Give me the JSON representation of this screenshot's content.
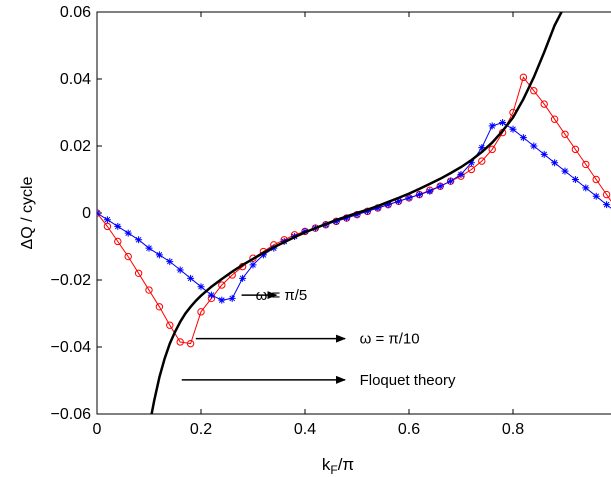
{
  "chart_data": {
    "type": "line",
    "xlabel": "k",
    "xlabel_sub": "F",
    "xlabel_tail": "/π",
    "ylabel": "ΔQ / cycle",
    "xlim": [
      0,
      1
    ],
    "ylim": [
      -0.06,
      0.06
    ],
    "x_ticks": [
      0,
      0.2,
      0.4,
      0.6,
      0.8,
      1
    ],
    "x_tick_labels": [
      "0",
      "0.2",
      "0.4",
      "0.6",
      "0.8",
      "1"
    ],
    "y_ticks": [
      -0.06,
      -0.04,
      -0.02,
      0,
      0.02,
      0.04,
      0.06
    ],
    "y_tick_labels": [
      "−0.06",
      "−0.04",
      "−0.02",
      "0",
      "0.02",
      "0.04",
      "0.06"
    ],
    "grid": false,
    "series": [
      {
        "name": "ω = π/10",
        "color": "#ff0000",
        "marker": "circle",
        "x": [
          0,
          0.02,
          0.04,
          0.06,
          0.08,
          0.1,
          0.12,
          0.14,
          0.16,
          0.18,
          0.2,
          0.22,
          0.24,
          0.26,
          0.28,
          0.3,
          0.32,
          0.34,
          0.36,
          0.38,
          0.4,
          0.42,
          0.44,
          0.46,
          0.48,
          0.5,
          0.52,
          0.54,
          0.56,
          0.58,
          0.6,
          0.62,
          0.64,
          0.66,
          0.68,
          0.7,
          0.72,
          0.74,
          0.76,
          0.78,
          0.8,
          0.82,
          0.84,
          0.86,
          0.88,
          0.9,
          0.92,
          0.94,
          0.96,
          0.98,
          1
        ],
        "y": [
          0,
          -0.004,
          -0.0085,
          -0.013,
          -0.018,
          -0.023,
          -0.028,
          -0.0335,
          -0.0385,
          -0.039,
          -0.0295,
          -0.0255,
          -0.0215,
          -0.0185,
          -0.016,
          -0.0135,
          -0.0115,
          -0.0095,
          -0.008,
          -0.0065,
          -0.0055,
          -0.0045,
          -0.0035,
          -0.0025,
          -0.0015,
          -0.0005,
          0.0005,
          0.0015,
          0.0025,
          0.0035,
          0.0045,
          0.0055,
          0.0068,
          0.008,
          0.0095,
          0.011,
          0.013,
          0.0155,
          0.019,
          0.024,
          0.03,
          0.0405,
          0.0365,
          0.0325,
          0.028,
          0.0235,
          0.019,
          0.0145,
          0.01,
          0.0055,
          0.001
        ]
      },
      {
        "name": "ω = π/5",
        "color": "#0000ff",
        "marker": "star",
        "x": [
          0,
          0.02,
          0.04,
          0.06,
          0.08,
          0.1,
          0.12,
          0.14,
          0.16,
          0.18,
          0.2,
          0.22,
          0.24,
          0.26,
          0.28,
          0.3,
          0.32,
          0.34,
          0.36,
          0.38,
          0.4,
          0.42,
          0.44,
          0.46,
          0.48,
          0.5,
          0.52,
          0.54,
          0.56,
          0.58,
          0.6,
          0.62,
          0.64,
          0.66,
          0.68,
          0.7,
          0.72,
          0.74,
          0.76,
          0.78,
          0.8,
          0.82,
          0.84,
          0.86,
          0.88,
          0.9,
          0.92,
          0.94,
          0.96,
          0.98,
          1
        ],
        "y": [
          0,
          -0.002,
          -0.004,
          -0.006,
          -0.008,
          -0.0105,
          -0.0125,
          -0.0145,
          -0.017,
          -0.0195,
          -0.022,
          -0.0245,
          -0.026,
          -0.0255,
          -0.0195,
          -0.0155,
          -0.0125,
          -0.0105,
          -0.0085,
          -0.007,
          -0.0055,
          -0.0045,
          -0.0035,
          -0.0025,
          -0.0015,
          -0.0005,
          0.0005,
          0.0015,
          0.0025,
          0.0035,
          0.0045,
          0.0055,
          0.0065,
          0.008,
          0.0095,
          0.0115,
          0.015,
          0.0195,
          0.026,
          0.027,
          0.025,
          0.0225,
          0.02,
          0.0175,
          0.015,
          0.0125,
          0.01,
          0.0075,
          0.005,
          0.0025,
          0
        ]
      },
      {
        "name": "Floquet theory",
        "color": "#000000",
        "marker": "none",
        "x": [
          0.105,
          0.11,
          0.12,
          0.13,
          0.14,
          0.15,
          0.16,
          0.17,
          0.18,
          0.19,
          0.2,
          0.22,
          0.24,
          0.26,
          0.28,
          0.3,
          0.32,
          0.34,
          0.36,
          0.38,
          0.4,
          0.42,
          0.44,
          0.46,
          0.48,
          0.5,
          0.52,
          0.54,
          0.56,
          0.58,
          0.6,
          0.62,
          0.64,
          0.66,
          0.68,
          0.7,
          0.72,
          0.74,
          0.76,
          0.78,
          0.8,
          0.82,
          0.84,
          0.86,
          0.88,
          0.9
        ],
        "y": [
          -0.06,
          -0.056,
          -0.049,
          -0.0435,
          -0.039,
          -0.0355,
          -0.0325,
          -0.03,
          -0.028,
          -0.0262,
          -0.0247,
          -0.022,
          -0.0197,
          -0.0175,
          -0.0155,
          -0.0137,
          -0.0119,
          -0.0102,
          -0.0087,
          -0.0072,
          -0.0058,
          -0.0045,
          -0.0033,
          -0.0021,
          -0.001,
          0,
          0.001,
          0.0021,
          0.0033,
          0.0045,
          0.0058,
          0.0072,
          0.0087,
          0.0102,
          0.0119,
          0.0137,
          0.0158,
          0.0182,
          0.021,
          0.0245,
          0.0285,
          0.034,
          0.0405,
          0.048,
          0.056,
          0.062
        ]
      }
    ],
    "annotations": [
      {
        "text": "ω = π/5",
        "x": 0.305,
        "y": -0.0245,
        "arrow_from": 0.278,
        "arrow_to": 0.345
      },
      {
        "text": "ω = π/10",
        "x": 0.505,
        "y": -0.0375,
        "arrow_from": 0.19,
        "arrow_to": 0.477
      },
      {
        "text": "Floquet theory",
        "x": 0.505,
        "y": -0.0498,
        "arrow_from": 0.163,
        "arrow_to": 0.477
      }
    ]
  }
}
